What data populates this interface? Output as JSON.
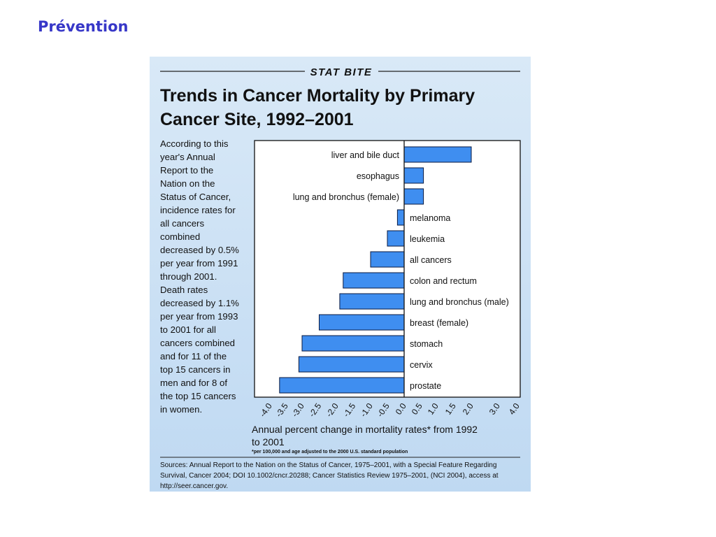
{
  "slide": {
    "title": "Prévention"
  },
  "figure": {
    "banner": "STAT BITE",
    "title_lines": [
      "Trends in Cancer Mortality by Primary",
      "Cancer Site, 1992–2001"
    ],
    "description_lines": [
      "According to this",
      "year's Annual",
      "Report to the",
      "Nation on the",
      "Status of Cancer,",
      "incidence rates for",
      "all cancers",
      "combined",
      "decreased by 0.5%",
      "per year from 1991",
      "through 2001.",
      "Death rates",
      "decreased by 1.1%",
      "per year from 1993",
      "to 2001 for all",
      "cancers combined",
      "and for 11 of the",
      "top 15 cancers in",
      "men and for 8 of",
      "the top 15 cancers",
      "in women."
    ],
    "footnote": "*per 100,000 and age adjusted to the 2000 U.S. standard population",
    "sources_lines": [
      "Sources: Annual Report to the Nation on the Status of Cancer, 1975–2001, with a Special Feature Regarding",
      "Survival, Cancer 2004; DOI 10.1002/cncr.20288; Cancer Statistics Review 1975–2001, (NCI 2004), access at",
      "http://seer.cancer.gov."
    ]
  },
  "colors": {
    "bar": "#3f8ef0",
    "bar_stroke": "#0a1a40",
    "panel": "#cfe2f5",
    "slide_title": "#3737c8"
  },
  "chart_data": {
    "type": "bar",
    "orientation": "horizontal",
    "xlabel_lines": [
      "Annual percent change in mortality rates* from 1992",
      "to 2001"
    ],
    "ylabel": "",
    "xlim": [
      -4.0,
      4.0
    ],
    "ticks": [
      "-4.0",
      "-3.5",
      "-3.0",
      "-2.5",
      "-2.0",
      "-1.5",
      "-1.0",
      "-0.5",
      "0.0",
      "0.5",
      "1.0",
      "1.5",
      "2.0",
      "3.0",
      "4.0"
    ],
    "grid": false,
    "categories": [
      "liver and bile duct",
      "esophagus",
      "lung and bronchus (female)",
      "melanoma",
      "leukemia",
      "all cancers",
      "colon and rectum",
      "lung and bronchus (male)",
      "breast (female)",
      "stomach",
      "cervix",
      "prostate"
    ],
    "values": [
      2.0,
      0.6,
      0.6,
      -0.2,
      -0.5,
      -1.0,
      -1.8,
      -1.9,
      -2.5,
      -3.0,
      -3.1,
      -3.7
    ]
  }
}
